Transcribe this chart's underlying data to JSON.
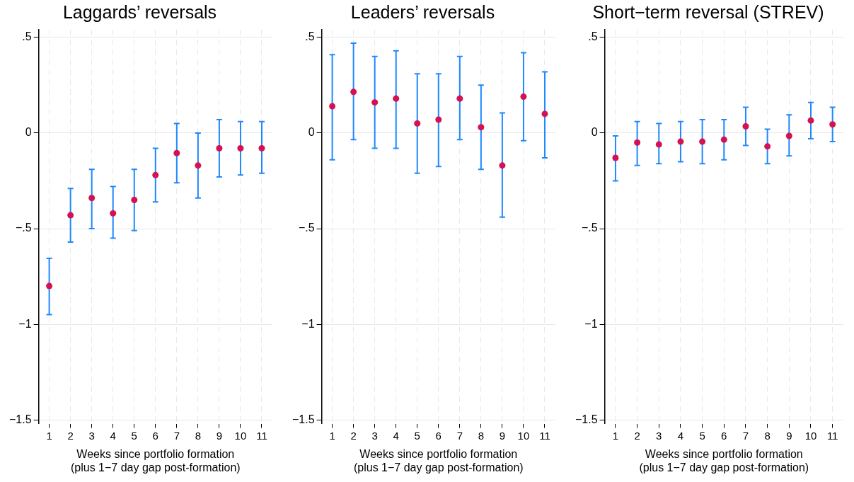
{
  "chart_data": [
    {
      "type": "scatter",
      "title": "Laggards’ reversals",
      "xlabel": "Weeks since portfolio formation\n(plus 1−7 day gap post-formation)",
      "x": [
        1,
        2,
        3,
        4,
        5,
        6,
        7,
        8,
        9,
        10,
        11
      ],
      "xlim": [
        0.5,
        11.5
      ],
      "xticks": [
        1,
        2,
        3,
        4,
        5,
        6,
        7,
        8,
        9,
        10,
        11
      ],
      "ylim": [
        -1.52,
        0.54
      ],
      "yticks": [
        {
          "value": -1.5,
          "label": "−1.5"
        },
        {
          "value": -1,
          "label": "−1"
        },
        {
          "value": -0.5,
          "label": "−.5"
        },
        {
          "value": 0,
          "label": "0"
        },
        {
          "value": 0.5,
          "label": ".5"
        }
      ],
      "grid": true,
      "legend": false,
      "marker": "circle",
      "series": [
        {
          "color": "#d6114f",
          "values": [
            -0.8,
            -0.43,
            -0.34,
            -0.42,
            -0.35,
            -0.22,
            -0.105,
            -0.17,
            -0.08,
            -0.08,
            -0.08
          ],
          "errors": [
            [
              -0.95,
              -0.655
            ],
            [
              -0.57,
              -0.29
            ],
            [
              -0.5,
              -0.19
            ],
            [
              -0.55,
              -0.28
            ],
            [
              -0.51,
              -0.19
            ],
            [
              -0.36,
              -0.08
            ],
            [
              -0.26,
              0.05
            ],
            [
              -0.34,
              0.0
            ],
            [
              -0.23,
              0.07
            ],
            [
              -0.22,
              0.06
            ],
            [
              -0.21,
              0.06
            ]
          ]
        }
      ]
    },
    {
      "type": "scatter",
      "title": "Leaders’ reversals",
      "xlabel": "Weeks since portfolio formation\n(plus 1−7 day gap post-formation)",
      "x": [
        1,
        2,
        3,
        4,
        5,
        6,
        7,
        8,
        9,
        10,
        11
      ],
      "xlim": [
        0.5,
        11.5
      ],
      "xticks": [
        1,
        2,
        3,
        4,
        5,
        6,
        7,
        8,
        9,
        10,
        11
      ],
      "ylim": [
        -1.52,
        0.54
      ],
      "yticks": [
        {
          "value": -1.5,
          "label": "−1.5"
        },
        {
          "value": -1,
          "label": "−1"
        },
        {
          "value": -0.5,
          "label": "−.5"
        },
        {
          "value": 0,
          "label": "0"
        },
        {
          "value": 0.5,
          "label": ".5"
        }
      ],
      "grid": true,
      "legend": false,
      "marker": "circle",
      "series": [
        {
          "color": "#d6114f",
          "values": [
            0.14,
            0.215,
            0.16,
            0.18,
            0.05,
            0.07,
            0.18,
            0.03,
            -0.17,
            0.19,
            0.1
          ],
          "errors": [
            [
              -0.14,
              0.41
            ],
            [
              -0.035,
              0.47
            ],
            [
              -0.08,
              0.4
            ],
            [
              -0.08,
              0.43
            ],
            [
              -0.21,
              0.31
            ],
            [
              -0.175,
              0.31
            ],
            [
              -0.035,
              0.4
            ],
            [
              -0.19,
              0.25
            ],
            [
              -0.44,
              0.105
            ],
            [
              -0.04,
              0.42
            ],
            [
              -0.13,
              0.32
            ]
          ]
        }
      ]
    },
    {
      "type": "scatter",
      "title": "Short−term reversal (STREV)",
      "xlabel": "Weeks since portfolio formation\n(plus 1−7 day gap post-formation)",
      "x": [
        1,
        2,
        3,
        4,
        5,
        6,
        7,
        8,
        9,
        10,
        11
      ],
      "xlim": [
        0.5,
        11.5
      ],
      "xticks": [
        1,
        2,
        3,
        4,
        5,
        6,
        7,
        8,
        9,
        10,
        11
      ],
      "ylim": [
        -1.52,
        0.54
      ],
      "yticks": [
        {
          "value": -1.5,
          "label": "−1.5"
        },
        {
          "value": -1,
          "label": "−1"
        },
        {
          "value": -0.5,
          "label": "−.5"
        },
        {
          "value": 0,
          "label": "0"
        },
        {
          "value": 0.5,
          "label": ".5"
        }
      ],
      "grid": true,
      "legend": false,
      "marker": "circle",
      "series": [
        {
          "color": "#d6114f",
          "values": [
            -0.13,
            -0.05,
            -0.06,
            -0.045,
            -0.045,
            -0.035,
            0.035,
            -0.07,
            -0.015,
            0.065,
            0.045
          ],
          "errors": [
            [
              -0.25,
              -0.015
            ],
            [
              -0.17,
              0.06
            ],
            [
              -0.16,
              0.05
            ],
            [
              -0.15,
              0.06
            ],
            [
              -0.16,
              0.07
            ],
            [
              -0.14,
              0.07
            ],
            [
              -0.065,
              0.135
            ],
            [
              -0.16,
              0.02
            ],
            [
              -0.12,
              0.095
            ],
            [
              -0.03,
              0.16
            ],
            [
              -0.045,
              0.135
            ]
          ]
        }
      ]
    }
  ]
}
